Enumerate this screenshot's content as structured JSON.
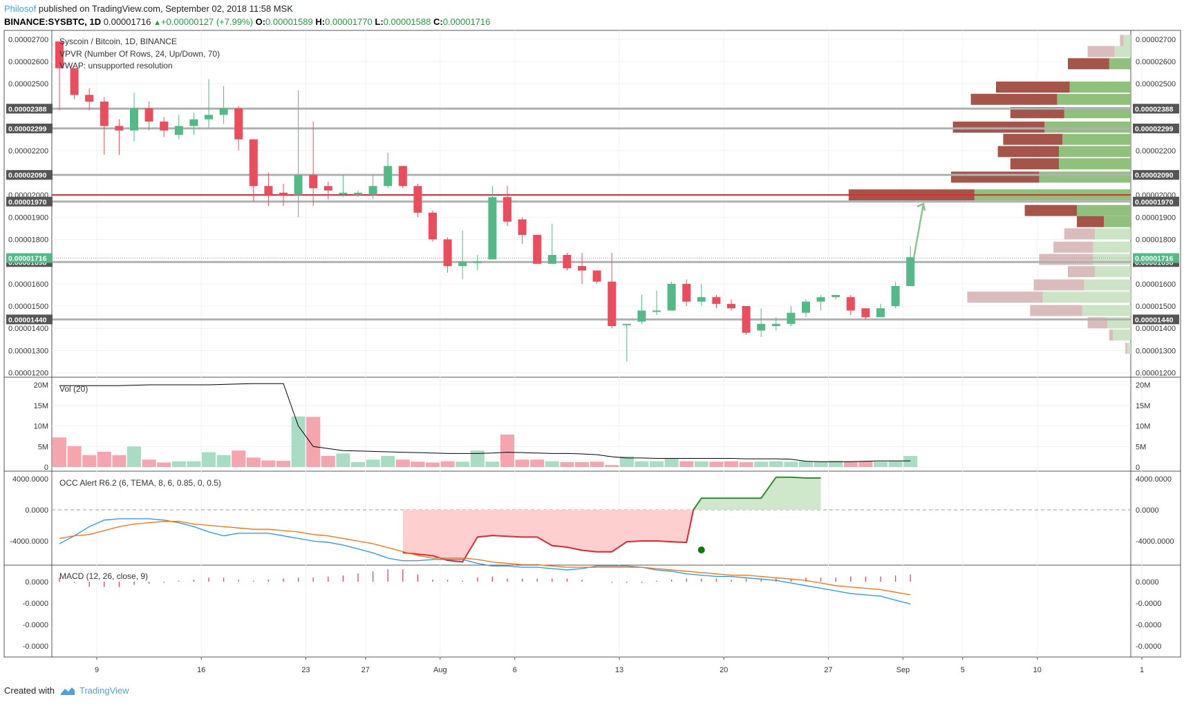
{
  "header": {
    "author": "Philosof",
    "published": "published on TradingView.com, September 02, 2018 11:58 MSK",
    "symbol": "BINANCE:SYSBTC, 1D",
    "last": "0.00001716",
    "change": "+0.00000127 (+7.99%)",
    "o_label": "O:",
    "o_value": "0.00001589",
    "h_label": "H:",
    "h_value": "0.00001770",
    "l_label": "L:",
    "l_value": "0.00001588",
    "c_label": "C:",
    "c_value": "0.00001716"
  },
  "footer": {
    "created": "Created with",
    "brand": "TradingView"
  },
  "chart_data": {
    "type": "candlestick",
    "legend": {
      "title": "Syscoin / Bitcoin, 1D, BINANCE",
      "vpvr": "VPVR (Number Of Rows, 24, Up/Down, 70)",
      "vwap": "VWAP: unsupported resolution"
    },
    "price_ticks": [
      "0.00002700",
      "0.00002600",
      "0.00002500",
      "0.00002200",
      "0.00002000",
      "0.00001900",
      "0.00001800",
      "0.00001600",
      "0.00001500",
      "0.00001400",
      "0.00001300",
      "0.00001200"
    ],
    "price_range": [
      1.18e-05,
      2.74e-05
    ],
    "levels": [
      {
        "label": "0.00002388",
        "price": 2.388e-05
      },
      {
        "label": "0.00002299",
        "price": 2.299e-05
      },
      {
        "label": "0.00002090",
        "price": 2.09e-05
      },
      {
        "label": "0.00001970",
        "price": 1.97e-05
      },
      {
        "label": "0.00001698",
        "price": 1.698e-05
      },
      {
        "label": "0.00001440",
        "price": 1.44e-05
      }
    ],
    "red_line": 2e-05,
    "current_price": {
      "label": "0.00001716",
      "price": 1.716e-05
    },
    "x_ticks": [
      {
        "label": "9",
        "index": 2.5
      },
      {
        "label": "16",
        "index": 9.5
      },
      {
        "label": "23",
        "index": 16.5
      },
      {
        "label": "27",
        "index": 20.5
      },
      {
        "label": "Aug",
        "index": 25.5
      },
      {
        "label": "6",
        "index": 30.5
      },
      {
        "label": "13",
        "index": 37.5
      },
      {
        "label": "20",
        "index": 44.5
      },
      {
        "label": "27",
        "index": 51.5
      },
      {
        "label": "Sep",
        "index": 56.5
      },
      {
        "label": "5",
        "index": 60.5
      },
      {
        "label": "10",
        "index": 65.5
      },
      {
        "label": "1",
        "index": 72.5
      }
    ],
    "candles": [
      [
        2.69,
        2.57,
        2.69,
        2.38
      ],
      [
        2.57,
        2.45,
        2.57,
        2.43
      ],
      [
        2.45,
        2.42,
        2.48,
        2.38
      ],
      [
        2.42,
        2.31,
        2.44,
        2.18
      ],
      [
        2.31,
        2.29,
        2.34,
        2.18
      ],
      [
        2.29,
        2.39,
        2.46,
        2.24
      ],
      [
        2.39,
        2.33,
        2.42,
        2.29
      ],
      [
        2.33,
        2.29,
        2.35,
        2.26
      ],
      [
        2.27,
        2.31,
        2.36,
        2.25
      ],
      [
        2.31,
        2.34,
        2.37,
        2.27
      ],
      [
        2.34,
        2.36,
        2.52,
        2.3
      ],
      [
        2.36,
        2.39,
        2.49,
        2.32
      ],
      [
        2.39,
        2.25,
        2.4,
        2.2
      ],
      [
        2.25,
        2.04,
        2.25,
        1.97
      ],
      [
        2.04,
        2.0,
        2.1,
        1.95
      ],
      [
        2.01,
        2.0,
        2.05,
        1.95
      ],
      [
        2.0,
        2.09,
        2.47,
        1.9
      ],
      [
        2.09,
        2.03,
        2.33,
        1.95
      ],
      [
        2.04,
        2.02,
        2.06,
        1.98
      ],
      [
        2.01,
        2.01,
        2.09,
        1.99
      ],
      [
        2.0,
        2.01,
        2.02,
        1.99
      ],
      [
        2.0,
        2.04,
        2.09,
        1.98
      ],
      [
        2.04,
        2.13,
        2.19,
        2.03
      ],
      [
        2.13,
        2.04,
        2.13,
        2.03
      ],
      [
        2.04,
        1.92,
        2.05,
        1.9
      ],
      [
        1.92,
        1.8,
        1.93,
        1.79
      ],
      [
        1.8,
        1.68,
        1.81,
        1.65
      ],
      [
        1.68,
        1.7,
        1.84,
        1.62
      ],
      [
        1.7,
        1.7,
        1.73,
        1.66
      ],
      [
        1.71,
        1.99,
        2.04,
        1.71
      ],
      [
        1.99,
        1.88,
        2.04,
        1.86
      ],
      [
        1.89,
        1.82,
        1.9,
        1.78
      ],
      [
        1.82,
        1.69,
        1.82,
        1.69
      ],
      [
        1.69,
        1.73,
        1.87,
        1.69
      ],
      [
        1.73,
        1.67,
        1.74,
        1.66
      ],
      [
        1.68,
        1.66,
        1.74,
        1.6
      ],
      [
        1.66,
        1.61,
        1.66,
        1.6
      ],
      [
        1.61,
        1.41,
        1.74,
        1.4
      ],
      [
        1.42,
        1.42,
        1.42,
        1.25
      ],
      [
        1.43,
        1.48,
        1.55,
        1.42
      ],
      [
        1.48,
        1.48,
        1.57,
        1.46
      ],
      [
        1.48,
        1.6,
        1.61,
        1.48
      ],
      [
        1.6,
        1.52,
        1.62,
        1.5
      ],
      [
        1.52,
        1.54,
        1.6,
        1.5
      ],
      [
        1.54,
        1.51,
        1.55,
        1.49
      ],
      [
        1.51,
        1.49,
        1.53,
        1.48
      ],
      [
        1.5,
        1.38,
        1.5,
        1.37
      ],
      [
        1.39,
        1.42,
        1.49,
        1.36
      ],
      [
        1.41,
        1.42,
        1.45,
        1.39
      ],
      [
        1.42,
        1.47,
        1.5,
        1.41
      ],
      [
        1.47,
        1.52,
        1.53,
        1.45
      ],
      [
        1.52,
        1.54,
        1.55,
        1.48
      ],
      [
        1.54,
        1.55,
        1.55,
        1.53
      ],
      [
        1.54,
        1.48,
        1.55,
        1.46
      ],
      [
        1.49,
        1.45,
        1.49,
        1.44
      ],
      [
        1.45,
        1.49,
        1.51,
        1.45
      ],
      [
        1.5,
        1.59,
        1.61,
        1.49
      ],
      [
        1.59,
        1.72,
        1.77,
        1.59
      ]
    ],
    "vpvr": [
      {
        "price": 2.695,
        "up": 0.4,
        "down": 0.2,
        "hl": false
      },
      {
        "price": 2.645,
        "up": 0.9,
        "down": 1.5,
        "hl": false
      },
      {
        "price": 2.59,
        "up": 1.2,
        "down": 2.3,
        "hl": true
      },
      {
        "price": 2.485,
        "up": 3.4,
        "down": 4.1,
        "hl": true
      },
      {
        "price": 2.43,
        "up": 4.1,
        "down": 4.8,
        "hl": true
      },
      {
        "price": 2.37,
        "up": 3.7,
        "down": 3.0,
        "hl": true
      },
      {
        "price": 2.305,
        "up": 4.8,
        "down": 5.1,
        "hl": true
      },
      {
        "price": 2.25,
        "up": 3.8,
        "down": 3.3,
        "hl": true
      },
      {
        "price": 2.195,
        "up": 4.0,
        "down": 3.4,
        "hl": true
      },
      {
        "price": 2.14,
        "up": 4.0,
        "down": 2.7,
        "hl": true
      },
      {
        "price": 2.08,
        "up": 5.1,
        "down": 4.9,
        "hl": true
      },
      {
        "price": 2.0,
        "up": 8.7,
        "down": 7.0,
        "hl": true
      },
      {
        "price": 1.93,
        "up": 3.0,
        "down": 2.9,
        "hl": true
      },
      {
        "price": 1.88,
        "up": 1.5,
        "down": 1.5,
        "hl": true
      },
      {
        "price": 1.825,
        "up": 2.0,
        "down": 1.7,
        "hl": false
      },
      {
        "price": 1.765,
        "up": 2.1,
        "down": 2.2,
        "hl": false
      },
      {
        "price": 1.71,
        "up": 2.1,
        "down": 3.0,
        "hl": false
      },
      {
        "price": 1.655,
        "up": 2.0,
        "down": 1.5,
        "hl": false
      },
      {
        "price": 1.595,
        "up": 2.6,
        "down": 2.8,
        "hl": false
      },
      {
        "price": 1.54,
        "up": 4.9,
        "down": 4.2,
        "hl": false
      },
      {
        "price": 1.48,
        "up": 2.7,
        "down": 2.9,
        "hl": false
      },
      {
        "price": 1.425,
        "up": 1.3,
        "down": 1.1,
        "hl": false
      },
      {
        "price": 1.37,
        "up": 1.0,
        "down": 0.2,
        "hl": false
      },
      {
        "price": 1.31,
        "up": 0.2,
        "down": 0.1,
        "hl": false
      }
    ],
    "volume": {
      "label": "Vol (20)",
      "ticks": [
        "20M",
        "15M",
        "10M",
        "5M",
        "0"
      ],
      "values": [
        7.2,
        5.1,
        2.9,
        3.7,
        2.9,
        5.0,
        1.8,
        1.1,
        1.4,
        1.4,
        3.6,
        2.9,
        4.0,
        2.3,
        1.6,
        1.5,
        12.3,
        12.2,
        2.7,
        3.3,
        1.2,
        1.8,
        2.7,
        1.8,
        1.3,
        1.1,
        1.4,
        1.3,
        4.0,
        1.3,
        7.9,
        1.8,
        1.8,
        1.4,
        1.2,
        1.2,
        1.3,
        0.5,
        2.6,
        1.4,
        1.4,
        2.1,
        1.4,
        1.4,
        1.3,
        1.4,
        1.2,
        1.3,
        1.4,
        1.3,
        1.4,
        1.4,
        1.5,
        1.4,
        1.4,
        1.3,
        1.4,
        2.7
      ],
      "ma": [
        19.8,
        19.8,
        19.8,
        19.8,
        19.8,
        19.9,
        20.0,
        20.0,
        20.0,
        20.0,
        20.0,
        20.1,
        20.2,
        20.3,
        20.3,
        20.3,
        10.0,
        5.0,
        4.5,
        4.0,
        3.9,
        3.8,
        3.7,
        3.6,
        3.5,
        3.4,
        3.3,
        3.3,
        3.3,
        3.4,
        3.6,
        3.5,
        3.4,
        3.3,
        3.3,
        3.2,
        3.0,
        2.5,
        2.2,
        2.2,
        2.1,
        2.1,
        2.1,
        2.1,
        2.1,
        2.1,
        2.0,
        2.0,
        2.0,
        1.9,
        1.4,
        1.3,
        1.3,
        1.3,
        1.4,
        1.5,
        1.5,
        1.5
      ]
    },
    "occ": {
      "label": "OCC Alert R6.2 (6, TEMA, 8, 6, 0.85, 0, 0.5)",
      "ticks": [
        "4000.0000",
        "0.0000",
        "-4000.0000"
      ],
      "start_index": 23,
      "values": [
        -5500,
        -5700,
        -5900,
        -6500,
        -6700,
        -3500,
        -3300,
        -3400,
        -3500,
        -3500,
        -4600,
        -4800,
        -5200,
        -5400,
        -5400,
        -4100,
        -4000,
        -4000,
        -4100,
        -4200,
        1500,
        1500,
        1500,
        1500,
        1500,
        4200,
        4200,
        4100,
        4100
      ]
    },
    "macd": {
      "label": "MACD (12, 26, close, 9)",
      "ticks": [
        "0.0000",
        "-0.0000",
        "-0.0000",
        "-0.0000"
      ],
      "macd": [
        -27,
        -33,
        -40,
        -45,
        -46,
        -46,
        -46,
        -45,
        -43,
        -40,
        -36,
        -33,
        -35,
        -35,
        -35,
        -33,
        -31,
        -29,
        -28,
        -26,
        -23,
        -20,
        -16,
        -14,
        -14,
        -15,
        -15,
        -15,
        -12,
        -10,
        -10,
        -9,
        -9,
        -8,
        -7,
        -8,
        -10,
        -10,
        -10,
        -9,
        -7,
        -6,
        -4,
        -3,
        -2,
        -2,
        -1,
        0,
        1,
        3,
        5,
        7,
        9,
        11,
        12,
        13,
        16,
        19
      ],
      "signal": [
        -31,
        -33,
        -34,
        -37,
        -40,
        -42,
        -43,
        -44,
        -44,
        -42,
        -41,
        -40,
        -39,
        -38,
        -38,
        -37,
        -36,
        -34,
        -33,
        -31,
        -29,
        -27,
        -24,
        -21,
        -18,
        -16,
        -16,
        -16,
        -15,
        -13,
        -12,
        -11,
        -11,
        -10,
        -9,
        -9,
        -9,
        -9,
        -9,
        -9,
        -8,
        -7,
        -6,
        -5,
        -4,
        -3,
        -3,
        -2,
        -1,
        0,
        1,
        3,
        5,
        6,
        7,
        8,
        10,
        12
      ],
      "hist": [
        4,
        -1,
        -5,
        -5,
        -5,
        -3,
        -2,
        -1,
        1,
        2,
        4,
        4,
        2,
        1,
        2,
        3,
        4,
        4,
        5,
        6,
        8,
        10,
        12,
        12,
        7,
        2,
        2,
        1,
        4,
        5,
        3,
        3,
        3,
        3,
        3,
        2,
        0,
        -1,
        -1,
        -1,
        1,
        2,
        3,
        3,
        3,
        2,
        3,
        3,
        3,
        3,
        4,
        4,
        4,
        5,
        5,
        5,
        6,
        7
      ]
    }
  }
}
